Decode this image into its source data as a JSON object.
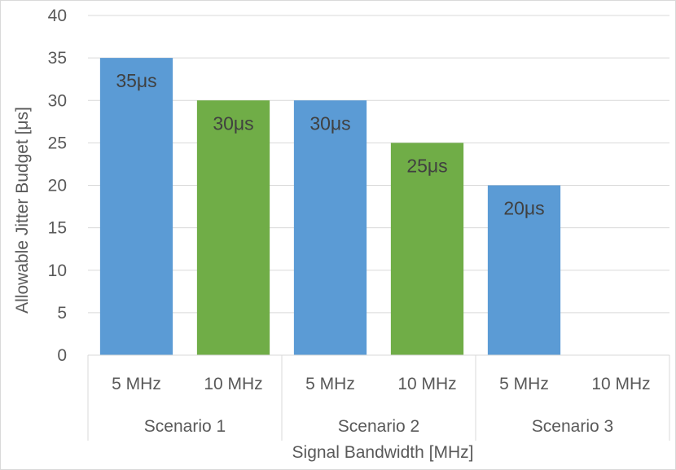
{
  "chart_data": {
    "type": "bar",
    "groups": [
      "Scenario 1",
      "Scenario 2",
      "Scenario 3"
    ],
    "categories": [
      {
        "group": "Scenario 1",
        "label": "5 MHz",
        "value": 35,
        "color": "#5B9BD5",
        "data_label": "35μs"
      },
      {
        "group": "Scenario 1",
        "label": "10 MHz",
        "value": 30,
        "color": "#70AD47",
        "data_label": "30μs"
      },
      {
        "group": "Scenario 2",
        "label": "5 MHz",
        "value": 30,
        "color": "#5B9BD5",
        "data_label": "30μs"
      },
      {
        "group": "Scenario 2",
        "label": "10 MHz",
        "value": 25,
        "color": "#70AD47",
        "data_label": "25μs"
      },
      {
        "group": "Scenario 3",
        "label": "5 MHz",
        "value": 20,
        "color": "#5B9BD5",
        "data_label": "20μs"
      },
      {
        "group": "Scenario 3",
        "label": "10 MHz",
        "value": null,
        "color": "#70AD47",
        "data_label": ""
      }
    ],
    "ylim": [
      0,
      40
    ],
    "yticks": [
      "0",
      "5",
      "10",
      "15",
      "20",
      "25",
      "30",
      "35",
      "40"
    ],
    "ylabel": "Allowable  Jitter Budget  [μs]",
    "xlabel": "Signal Bandwidth  [MHz]",
    "grid": true,
    "legend": "none"
  }
}
